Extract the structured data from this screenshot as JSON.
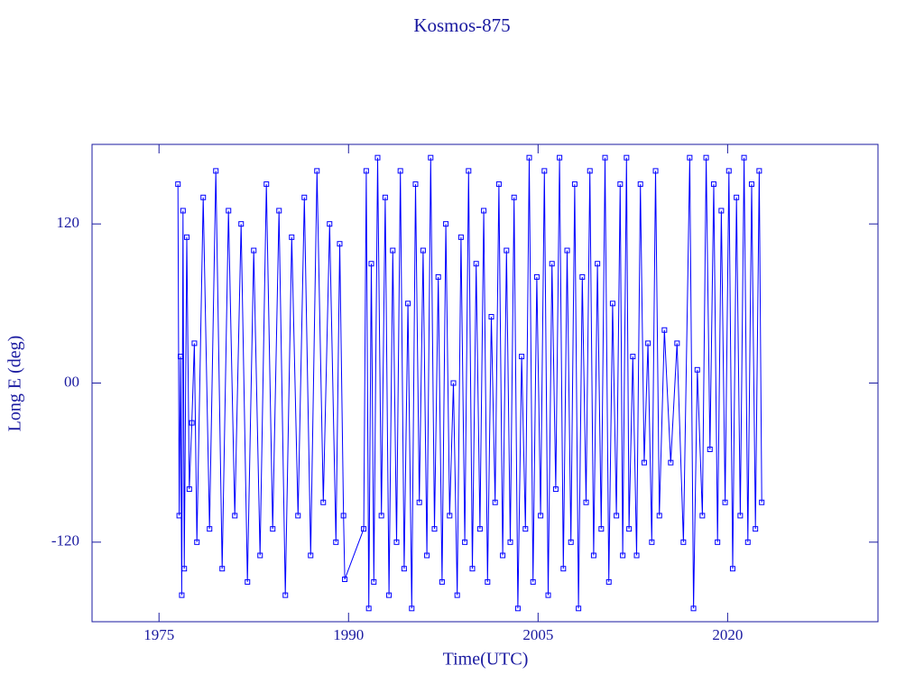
{
  "chart_data": {
    "type": "line",
    "title": "Kosmos-875",
    "x_label": "Time(UTC)",
    "y_label": "Long E (deg)",
    "color": "#0000ff",
    "xlim": [
      1969.7,
      2031.9
    ],
    "ylim": [
      -180,
      180
    ],
    "xticks": [
      1975,
      1990,
      2005,
      2020
    ],
    "yticks": [
      -120,
      {
        "value": 0,
        "label": "00"
      },
      120
    ],
    "x": [
      1976.5,
      1976.6,
      1976.7,
      1976.8,
      1976.9,
      1977.0,
      1977.2,
      1977.4,
      1977.6,
      1977.8,
      1978.0,
      1978.5,
      1979.0,
      1979.5,
      1980.0,
      1980.5,
      1981.0,
      1981.5,
      1982.0,
      1982.5,
      1983.0,
      1983.5,
      1984.0,
      1984.5,
      1985.0,
      1985.5,
      1986.0,
      1986.5,
      1987.0,
      1987.5,
      1988.0,
      1988.5,
      1989.0,
      1989.3,
      1989.6,
      1989.7,
      1991.2,
      1991.4,
      1991.6,
      1991.8,
      1992.0,
      1992.3,
      1992.6,
      1992.9,
      1993.2,
      1993.5,
      1993.8,
      1994.1,
      1994.4,
      1994.7,
      1995.0,
      1995.3,
      1995.6,
      1995.9,
      1996.2,
      1996.5,
      1996.8,
      1997.1,
      1997.4,
      1997.7,
      1998.0,
      1998.3,
      1998.6,
      1998.9,
      1999.2,
      1999.5,
      1999.8,
      2000.1,
      2000.4,
      2000.7,
      2001.0,
      2001.3,
      2001.6,
      2001.9,
      2002.2,
      2002.5,
      2002.8,
      2003.1,
      2003.4,
      2003.7,
      2004.0,
      2004.3,
      2004.6,
      2004.9,
      2005.2,
      2005.5,
      2005.8,
      2006.1,
      2006.4,
      2006.7,
      2007.0,
      2007.3,
      2007.6,
      2007.9,
      2008.2,
      2008.5,
      2008.8,
      2009.1,
      2009.4,
      2009.7,
      2010.0,
      2010.3,
      2010.6,
      2010.9,
      2011.2,
      2011.5,
      2011.7,
      2012.0,
      2012.2,
      2012.5,
      2012.8,
      2013.1,
      2013.4,
      2013.7,
      2014.0,
      2014.3,
      2014.6,
      2015.0,
      2015.5,
      2016.0,
      2016.5,
      2017.0,
      2017.3,
      2017.6,
      2018.0,
      2018.3,
      2018.6,
      2018.9,
      2019.2,
      2019.5,
      2019.8,
      2020.1,
      2020.4,
      2020.7,
      2021.0,
      2021.3,
      2021.6,
      2021.9,
      2022.2,
      2022.5,
      2022.7
    ],
    "values": [
      150,
      -100,
      20,
      -160,
      130,
      -140,
      110,
      -80,
      -30,
      30,
      -120,
      140,
      -110,
      160,
      -140,
      130,
      -100,
      120,
      -150,
      100,
      -130,
      150,
      -110,
      130,
      -160,
      110,
      -100,
      140,
      -130,
      160,
      -90,
      120,
      -120,
      105,
      -100,
      -148,
      -110,
      160,
      -170,
      90,
      -150,
      170,
      -100,
      140,
      -160,
      100,
      -120,
      160,
      -140,
      60,
      -170,
      150,
      -90,
      100,
      -130,
      170,
      -110,
      80,
      -150,
      120,
      -100,
      0,
      -160,
      110,
      -120,
      160,
      -140,
      90,
      -110,
      130,
      -150,
      50,
      -90,
      150,
      -130,
      100,
      -120,
      140,
      -170,
      20,
      -110,
      170,
      -150,
      80,
      -100,
      160,
      -160,
      90,
      -80,
      170,
      -140,
      100,
      -120,
      150,
      -170,
      80,
      -90,
      160,
      -130,
      90,
      -110,
      170,
      -150,
      60,
      -100,
      150,
      -130,
      170,
      -110,
      20,
      -130,
      150,
      -60,
      30,
      -120,
      160,
      -100,
      40,
      -60,
      30,
      -120,
      170,
      -170,
      10,
      -100,
      170,
      -50,
      150,
      -120,
      130,
      -90,
      160,
      -140,
      140,
      -100,
      170,
      -120,
      150,
      -110,
      160,
      -90
    ]
  }
}
